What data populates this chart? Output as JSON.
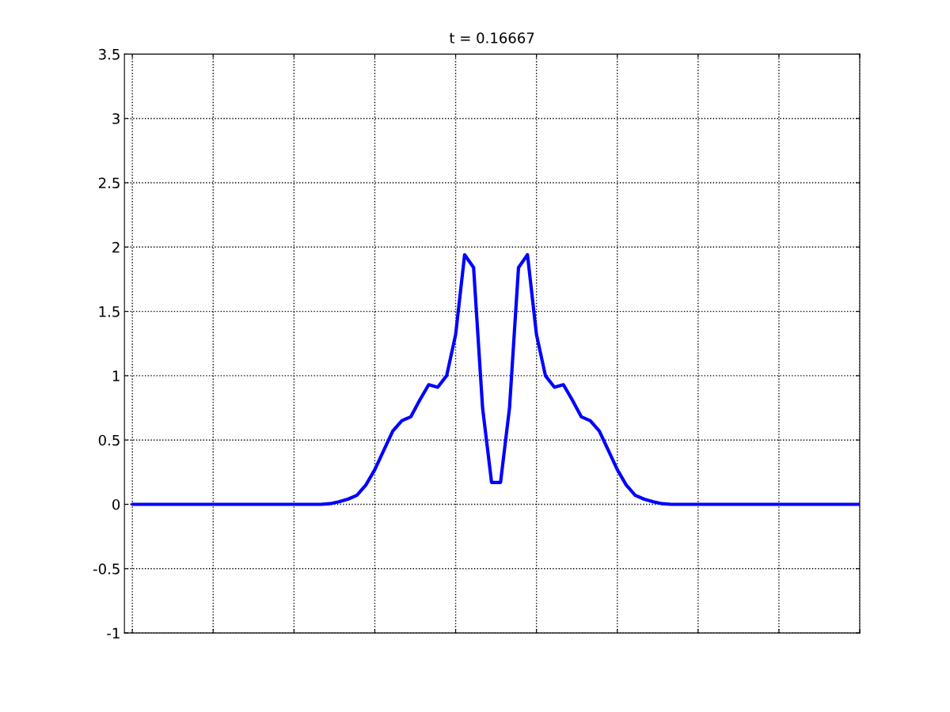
{
  "chart_data": {
    "type": "line",
    "title": "t = 0.16667",
    "categories": [
      null,
      null,
      null,
      null,
      null,
      null,
      null,
      null,
      null,
      null,
      null,
      null,
      null,
      null,
      null,
      null,
      null,
      null,
      null,
      null,
      null,
      null,
      null,
      null,
      null,
      null,
      null,
      null,
      null,
      null,
      null,
      null,
      null,
      null,
      null,
      null,
      null,
      null,
      null,
      null,
      null,
      null,
      null,
      null,
      null,
      null,
      null,
      null,
      null,
      null,
      null,
      null,
      null,
      null,
      null,
      null,
      null,
      null,
      null,
      null,
      null,
      null,
      null,
      null,
      null,
      null,
      null,
      null,
      null,
      null,
      null,
      null,
      null,
      null,
      null,
      null,
      null,
      null,
      null,
      null,
      null,
      null
    ],
    "series": [
      {
        "color": "#0000ff",
        "values": [
          0,
          0,
          0,
          0,
          0,
          0,
          0,
          0,
          0,
          0,
          0,
          0,
          0,
          0,
          0,
          0,
          0,
          0,
          0,
          0,
          0,
          0,
          0.005,
          0.02,
          0.04,
          0.07,
          0.15,
          0.27,
          0.42,
          0.57,
          0.65,
          0.68,
          0.81,
          0.93,
          0.91,
          1.0,
          1.32,
          1.94,
          1.84,
          0.75,
          0.17,
          0.17,
          0.75,
          1.84,
          1.94,
          1.32,
          1.0,
          0.91,
          0.93,
          0.81,
          0.68,
          0.65,
          0.57,
          0.42,
          0.27,
          0.15,
          0.07,
          0.04,
          0.02,
          0.005,
          0,
          0,
          0,
          0,
          0,
          0,
          0,
          0,
          0,
          0,
          0,
          0,
          0,
          0,
          0,
          0,
          0,
          0,
          0,
          0,
          0,
          0
        ]
      }
    ],
    "ylim": [
      -1,
      3.5
    ],
    "yticks": [
      -1,
      -0.5,
      0,
      0.5,
      1,
      1.5,
      2,
      2.5,
      3,
      3.5
    ],
    "grid": true,
    "tick_labels": "y",
    "line_style": "solid",
    "marker": "none"
  }
}
